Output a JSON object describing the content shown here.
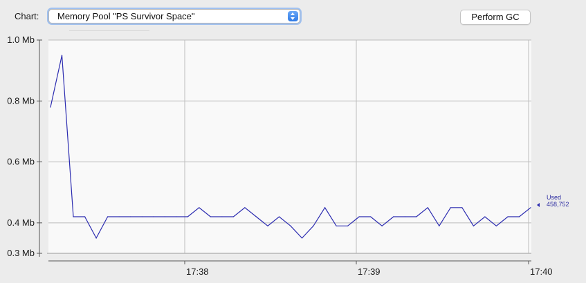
{
  "toolbar": {
    "chart_label": "Chart:",
    "selected_chart": "Memory Pool \"PS Survivor Space\"",
    "perform_gc_label": "Perform GC"
  },
  "colors": {
    "series": "#2b2bb0",
    "grid": "#bdbdbd",
    "plot_bg": "#f9f9f9",
    "focus_ring": "#9fc0ef"
  },
  "chart_data": {
    "type": "line",
    "title": "",
    "xlabel": "",
    "ylabel": "",
    "ylim": [
      0.3,
      1.0
    ],
    "y_ticks": [
      {
        "value": 1.0,
        "label": "1.0 Mb"
      },
      {
        "value": 0.8,
        "label": "0.8 Mb"
      },
      {
        "value": 0.6,
        "label": "0.6 Mb"
      },
      {
        "value": 0.4,
        "label": "0.4 Mb"
      },
      {
        "value": 0.3,
        "label": "0.3 Mb"
      }
    ],
    "x_ticks": [
      "17:38",
      "17:39",
      "17:40"
    ],
    "grid": true,
    "series": [
      {
        "name": "Used",
        "values": [
          0.78,
          0.95,
          0.42,
          0.42,
          0.35,
          0.42,
          0.42,
          0.42,
          0.42,
          0.42,
          0.42,
          0.42,
          0.42,
          0.45,
          0.42,
          0.42,
          0.42,
          0.45,
          0.42,
          0.39,
          0.42,
          0.39,
          0.35,
          0.39,
          0.45,
          0.39,
          0.39,
          0.42,
          0.42,
          0.39,
          0.42,
          0.42,
          0.42,
          0.45,
          0.39,
          0.45,
          0.45,
          0.39,
          0.42,
          0.39,
          0.42,
          0.42,
          0.45
        ]
      }
    ],
    "current_value": {
      "label": "Used",
      "value": "458,752"
    }
  }
}
